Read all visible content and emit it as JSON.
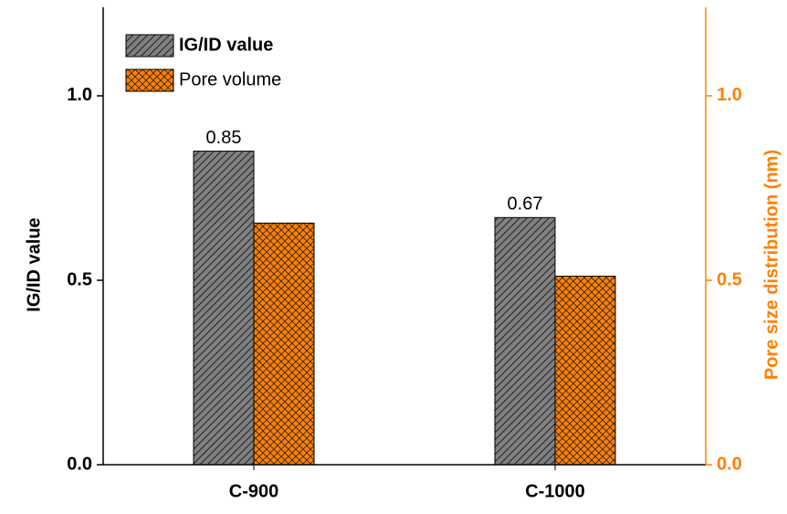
{
  "chart_data": {
    "type": "bar",
    "categories": [
      "C-900",
      "C-1000"
    ],
    "ylabel": "IG/ID value",
    "y2label": "Pore size distribution (nm)",
    "series": [
      {
        "name": "IG/ID value",
        "color": "#808080",
        "values": [
          0.85,
          0.67
        ]
      },
      {
        "name": "Pore volume",
        "color": "#ff8000",
        "values": [
          0.655,
          0.511
        ],
        "axis": "y2"
      }
    ],
    "ylim": [
      0,
      1.24
    ],
    "yticks": [
      {
        "value": 0,
        "label": "0.0"
      },
      0.5,
      {
        "value": 1,
        "label": "1.0"
      }
    ],
    "y2lim": [
      0,
      1.24
    ],
    "y2ticks": [
      {
        "value": 0,
        "label": "0.0"
      },
      0.5,
      {
        "value": 1,
        "label": "1.0"
      }
    ],
    "y2color": "#ff8000",
    "labeled_series": 0
  }
}
